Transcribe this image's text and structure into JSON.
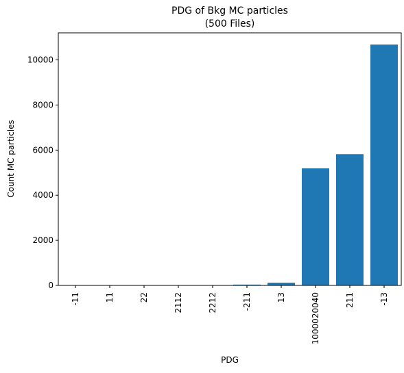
{
  "chart_data": {
    "type": "bar",
    "title_line1": "PDG of Bkg MC particles",
    "title_line2": "(500 Files)",
    "xlabel": "PDG",
    "ylabel": "Count MC particles",
    "categories": [
      "-11",
      "11",
      "22",
      "2112",
      "2212",
      "-211",
      "13",
      "1000020040",
      "211",
      "-13"
    ],
    "values": [
      3,
      4,
      5,
      6,
      8,
      35,
      120,
      5190,
      5820,
      10680
    ],
    "ylim": [
      0,
      11200
    ],
    "yticks": [
      "0",
      "2000",
      "4000",
      "6000",
      "8000",
      "10000"
    ],
    "grid": false,
    "bar_color": "#1f77b4"
  }
}
